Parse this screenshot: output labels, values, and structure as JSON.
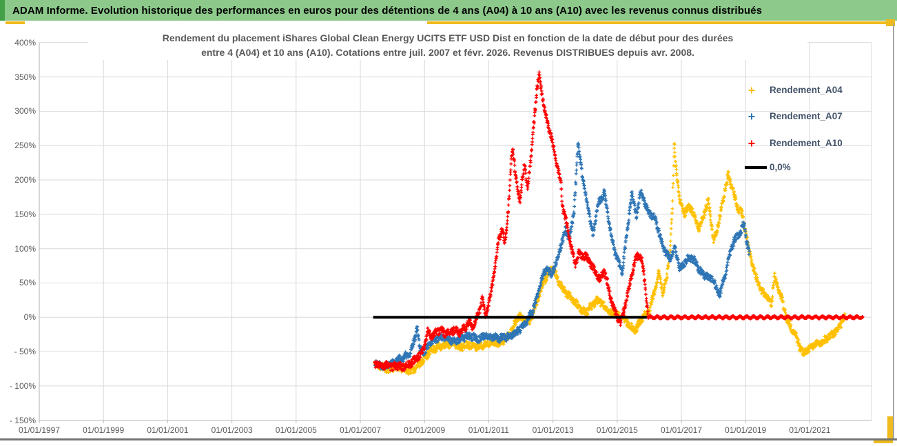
{
  "page": {
    "bg": "#FFFFFF",
    "right_border_color": "#A6A6A6",
    "bottom_line_color": "#737373",
    "accent_gold": "#EFBB1F"
  },
  "header": {
    "title": "ADAM Informe. Evolution historique des performances en euros pour des détentions de 4 ans (A04) à 10 ans (A10) avec les revenus connus distribués",
    "bg": "#8DC98B",
    "left_strip_color": "#44A046",
    "text_color": "#000000"
  },
  "chart_data": {
    "type": "scatter",
    "title_line1": "Rendement du placement iShares Global Clean Energy UCITS ETF USD Dist en fonction de la date de début pour des durées",
    "title_line2": "entre 4 (A04) et 10 ans (A10). Cotations entre juil. 2007 et févr. 2026.  Revenus DISTRIBUES depuis avr. 2008.",
    "title_color": "#595959",
    "grid_color": "#D9D9D9",
    "axis_color": "#BFBFBF",
    "label_color": "#595959",
    "grid_on": true,
    "x_axis": {
      "tick_labels": [
        "01/01/1997",
        "01/01/1999",
        "01/01/2001",
        "01/01/2003",
        "01/01/2005",
        "01/01/2007",
        "01/01/2009",
        "01/01/2011",
        "01/01/2013",
        "01/01/2015",
        "01/01/2017",
        "01/01/2019",
        "01/01/2021"
      ],
      "tick_years": [
        1997,
        1999,
        2001,
        2003,
        2005,
        2007,
        2009,
        2011,
        2013,
        2015,
        2017,
        2019,
        2021
      ],
      "min_year": 1997,
      "max_year": 2023.3
    },
    "y_axis": {
      "tick_labels": [
        "400%",
        "350%",
        "300%",
        "250%",
        "200%",
        "150%",
        "100%",
        "50%",
        "0%",
        "- 50%",
        "- 100%",
        "- 150%"
      ],
      "tick_values": [
        400,
        350,
        300,
        250,
        200,
        150,
        100,
        50,
        0,
        -50,
        -100,
        -150
      ],
      "min": -150,
      "max": 400,
      "step": 50
    },
    "legend": {
      "position": "right-top",
      "text_color": "#44546A",
      "items": [
        {
          "label": "Rendement_A04",
          "color": "#FFC000",
          "marker": "plus"
        },
        {
          "label": "Rendement_A07",
          "color": "#2E75B6",
          "marker": "plus"
        },
        {
          "label": "Rendement_A10",
          "color": "#FF0000",
          "marker": "plus"
        },
        {
          "label": "0,0%",
          "color": "#000000",
          "marker": "line"
        }
      ]
    },
    "zero_line": {
      "label": "0,0%",
      "color": "#000000",
      "from_year": 2007.4,
      "to_year": 2016.05,
      "value": 0
    },
    "series": [
      {
        "name": "Rendement_A04",
        "color": "#FFC000",
        "marker": "plus",
        "unit": "percent",
        "keypoints": [
          [
            2007.45,
            -68
          ],
          [
            2007.7,
            -73
          ],
          [
            2007.9,
            -76
          ],
          [
            2008.1,
            -72
          ],
          [
            2008.35,
            -75
          ],
          [
            2008.6,
            -78
          ],
          [
            2008.8,
            -70
          ],
          [
            2009.0,
            -60
          ],
          [
            2009.2,
            -48
          ],
          [
            2009.45,
            -43
          ],
          [
            2009.7,
            -40
          ],
          [
            2009.9,
            -37
          ],
          [
            2010.1,
            -44
          ],
          [
            2010.35,
            -39
          ],
          [
            2010.6,
            -43
          ],
          [
            2010.85,
            -40
          ],
          [
            2011.1,
            -36
          ],
          [
            2011.35,
            -38
          ],
          [
            2011.6,
            -28
          ],
          [
            2011.8,
            -10
          ],
          [
            2011.95,
            2
          ],
          [
            2012.1,
            -3
          ],
          [
            2012.25,
            -8
          ],
          [
            2012.4,
            10
          ],
          [
            2012.55,
            30
          ],
          [
            2012.7,
            50
          ],
          [
            2012.85,
            63
          ],
          [
            2013.0,
            72
          ],
          [
            2013.15,
            55
          ],
          [
            2013.3,
            42
          ],
          [
            2013.45,
            33
          ],
          [
            2013.6,
            28
          ],
          [
            2013.75,
            18
          ],
          [
            2013.9,
            10
          ],
          [
            2014.05,
            8
          ],
          [
            2014.2,
            16
          ],
          [
            2014.35,
            24
          ],
          [
            2014.5,
            22
          ],
          [
            2014.65,
            12
          ],
          [
            2014.8,
            6
          ],
          [
            2014.95,
            4
          ],
          [
            2015.1,
            2
          ],
          [
            2015.25,
            -4
          ],
          [
            2015.4,
            -12
          ],
          [
            2015.55,
            -20
          ],
          [
            2015.7,
            -8
          ],
          [
            2015.85,
            2
          ],
          [
            2016.0,
            10
          ],
          [
            2016.15,
            35
          ],
          [
            2016.3,
            65
          ],
          [
            2016.42,
            35
          ],
          [
            2016.55,
            60
          ],
          [
            2016.65,
            95
          ],
          [
            2016.72,
            160
          ],
          [
            2016.78,
            252
          ],
          [
            2016.85,
            210
          ],
          [
            2016.95,
            170
          ],
          [
            2017.1,
            150
          ],
          [
            2017.25,
            163
          ],
          [
            2017.4,
            148
          ],
          [
            2017.55,
            128
          ],
          [
            2017.7,
            150
          ],
          [
            2017.85,
            170
          ],
          [
            2018.0,
            110
          ],
          [
            2018.15,
            135
          ],
          [
            2018.3,
            170
          ],
          [
            2018.45,
            208
          ],
          [
            2018.6,
            185
          ],
          [
            2018.75,
            160
          ],
          [
            2018.9,
            150
          ],
          [
            2019.05,
            110
          ],
          [
            2019.2,
            80
          ],
          [
            2019.35,
            55
          ],
          [
            2019.5,
            38
          ],
          [
            2019.65,
            32
          ],
          [
            2019.8,
            20
          ],
          [
            2019.9,
            60
          ],
          [
            2020.0,
            45
          ],
          [
            2020.1,
            32
          ],
          [
            2020.25,
            2
          ],
          [
            2020.4,
            -14
          ],
          [
            2020.55,
            -26
          ],
          [
            2020.7,
            -44
          ],
          [
            2020.8,
            -52
          ],
          [
            2020.95,
            -47
          ],
          [
            2021.1,
            -42
          ],
          [
            2021.25,
            -37
          ],
          [
            2021.4,
            -36
          ],
          [
            2021.55,
            -30
          ],
          [
            2021.7,
            -25
          ],
          [
            2021.85,
            -18
          ],
          [
            2022.0,
            -8
          ],
          [
            2022.1,
            4
          ]
        ]
      },
      {
        "name": "Rendement_A07",
        "color": "#2E75B6",
        "marker": "plus",
        "unit": "percent",
        "keypoints": [
          [
            2007.45,
            -66
          ],
          [
            2007.75,
            -71
          ],
          [
            2007.95,
            -68
          ],
          [
            2008.15,
            -63
          ],
          [
            2008.35,
            -58
          ],
          [
            2008.55,
            -54
          ],
          [
            2008.7,
            -30
          ],
          [
            2008.77,
            -12
          ],
          [
            2008.85,
            -45
          ],
          [
            2009.0,
            -50
          ],
          [
            2009.15,
            -40
          ],
          [
            2009.3,
            -32
          ],
          [
            2009.5,
            -28
          ],
          [
            2009.7,
            -30
          ],
          [
            2009.9,
            -36
          ],
          [
            2010.1,
            -32
          ],
          [
            2010.3,
            -27
          ],
          [
            2010.5,
            -29
          ],
          [
            2010.7,
            -31
          ],
          [
            2010.9,
            -27
          ],
          [
            2011.1,
            -28
          ],
          [
            2011.3,
            -31
          ],
          [
            2011.5,
            -29
          ],
          [
            2011.7,
            -27
          ],
          [
            2011.9,
            -20
          ],
          [
            2012.05,
            -14
          ],
          [
            2012.2,
            -5
          ],
          [
            2012.35,
            8
          ],
          [
            2012.5,
            28
          ],
          [
            2012.65,
            55
          ],
          [
            2012.8,
            72
          ],
          [
            2012.95,
            62
          ],
          [
            2013.1,
            80
          ],
          [
            2013.25,
            105
          ],
          [
            2013.4,
            128
          ],
          [
            2013.5,
            112
          ],
          [
            2013.65,
            150
          ],
          [
            2013.78,
            250
          ],
          [
            2013.85,
            230
          ],
          [
            2013.95,
            195
          ],
          [
            2014.1,
            158
          ],
          [
            2014.25,
            120
          ],
          [
            2014.4,
            165
          ],
          [
            2014.6,
            182
          ],
          [
            2014.75,
            135
          ],
          [
            2014.9,
            100
          ],
          [
            2015.05,
            80
          ],
          [
            2015.15,
            65
          ],
          [
            2015.3,
            120
          ],
          [
            2015.45,
            182
          ],
          [
            2015.6,
            150
          ],
          [
            2015.75,
            185
          ],
          [
            2015.9,
            160
          ],
          [
            2016.05,
            150
          ],
          [
            2016.2,
            142
          ],
          [
            2016.35,
            115
          ],
          [
            2016.5,
            95
          ],
          [
            2016.65,
            85
          ],
          [
            2016.8,
            100
          ],
          [
            2016.95,
            70
          ],
          [
            2017.1,
            80
          ],
          [
            2017.25,
            88
          ],
          [
            2017.4,
            83
          ],
          [
            2017.55,
            70
          ],
          [
            2017.7,
            62
          ],
          [
            2017.85,
            58
          ],
          [
            2018.0,
            55
          ],
          [
            2018.1,
            40
          ],
          [
            2018.2,
            35
          ],
          [
            2018.35,
            60
          ],
          [
            2018.5,
            90
          ],
          [
            2018.65,
            113
          ],
          [
            2018.8,
            122
          ],
          [
            2018.95,
            135
          ],
          [
            2019.05,
            108
          ],
          [
            2019.12,
            92
          ]
        ]
      },
      {
        "name": "Rendement_A10",
        "color": "#FF0000",
        "marker": "plus",
        "unit": "percent",
        "keypoints": [
          [
            2007.45,
            -67
          ],
          [
            2007.7,
            -72
          ],
          [
            2007.85,
            -69
          ],
          [
            2008.0,
            -73
          ],
          [
            2008.15,
            -70
          ],
          [
            2008.3,
            -73
          ],
          [
            2008.45,
            -71
          ],
          [
            2008.6,
            -66
          ],
          [
            2008.75,
            -60
          ],
          [
            2008.9,
            -52
          ],
          [
            2009.0,
            -42
          ],
          [
            2009.1,
            -20
          ],
          [
            2009.2,
            -28
          ],
          [
            2009.35,
            -22
          ],
          [
            2009.5,
            -18
          ],
          [
            2009.65,
            -24
          ],
          [
            2009.8,
            -22
          ],
          [
            2009.95,
            -18
          ],
          [
            2010.1,
            -22
          ],
          [
            2010.25,
            -15
          ],
          [
            2010.4,
            -8
          ],
          [
            2010.5,
            -16
          ],
          [
            2010.6,
            -5
          ],
          [
            2010.7,
            8
          ],
          [
            2010.8,
            26
          ],
          [
            2010.9,
            4
          ],
          [
            2011.0,
            18
          ],
          [
            2011.1,
            45
          ],
          [
            2011.2,
            75
          ],
          [
            2011.3,
            110
          ],
          [
            2011.4,
            128
          ],
          [
            2011.5,
            108
          ],
          [
            2011.6,
            150
          ],
          [
            2011.7,
            225
          ],
          [
            2011.75,
            248
          ],
          [
            2011.82,
            215
          ],
          [
            2011.9,
            185
          ],
          [
            2011.97,
            168
          ],
          [
            2012.05,
            205
          ],
          [
            2012.12,
            222
          ],
          [
            2012.2,
            188
          ],
          [
            2012.3,
            225
          ],
          [
            2012.4,
            280
          ],
          [
            2012.5,
            330
          ],
          [
            2012.57,
            352
          ],
          [
            2012.65,
            328
          ],
          [
            2012.75,
            300
          ],
          [
            2012.85,
            280
          ],
          [
            2012.95,
            262
          ],
          [
            2013.05,
            240
          ],
          [
            2013.15,
            215
          ],
          [
            2013.25,
            195
          ],
          [
            2013.3,
            160
          ],
          [
            2013.4,
            142
          ],
          [
            2013.5,
            120
          ],
          [
            2013.6,
            95
          ],
          [
            2013.7,
            78
          ],
          [
            2013.8,
            95
          ],
          [
            2013.9,
            88
          ],
          [
            2014.0,
            90
          ],
          [
            2014.15,
            80
          ],
          [
            2014.3,
            68
          ],
          [
            2014.45,
            56
          ],
          [
            2014.6,
            66
          ],
          [
            2014.7,
            50
          ],
          [
            2014.8,
            28
          ],
          [
            2014.9,
            12
          ],
          [
            2015.0,
            2
          ],
          [
            2015.1,
            -8
          ],
          [
            2015.2,
            8
          ],
          [
            2015.3,
            28
          ],
          [
            2015.45,
            60
          ],
          [
            2015.6,
            90
          ],
          [
            2015.7,
            88
          ],
          [
            2015.78,
            82
          ],
          [
            2015.85,
            55
          ],
          [
            2015.92,
            20
          ],
          [
            2015.97,
            2
          ]
        ],
        "flat_zero_tail": {
          "from_year": 2015.97,
          "to_year": 2022.65,
          "value": 0
        }
      }
    ]
  }
}
